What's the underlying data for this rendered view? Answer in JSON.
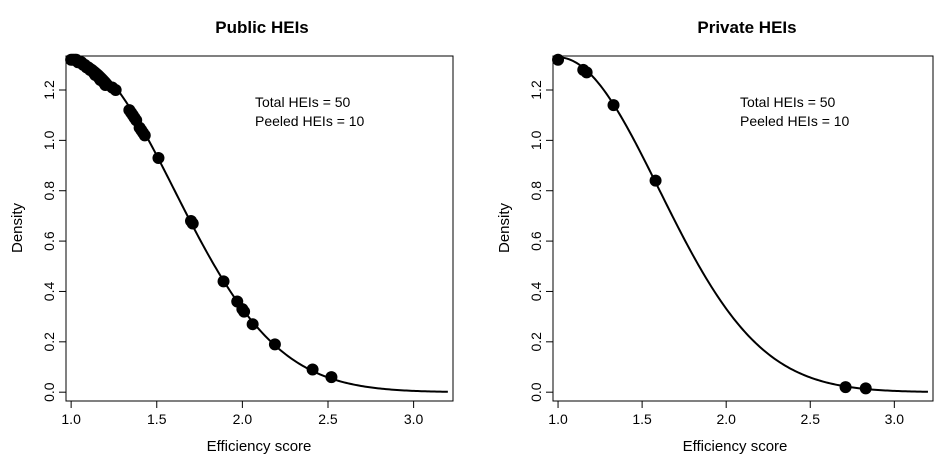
{
  "chart_data": [
    {
      "type": "scatter",
      "title": "Public HEIs",
      "xlabel": "Efficiency score",
      "ylabel": "Density",
      "xlim": [
        0.97,
        3.23
      ],
      "ylim": [
        -0.035,
        1.335
      ],
      "xticks": [
        "1.0",
        "1.5",
        "2.0",
        "2.5",
        "3.0"
      ],
      "yticks": [
        "0.0",
        "0.2",
        "0.4",
        "0.6",
        "0.8",
        "1.0",
        "1.2"
      ],
      "annotations": [
        "Total HEIs = 50",
        "Peeled HEIs = 10"
      ],
      "curve": {
        "type": "half-normal density",
        "sigma": 0.6,
        "x_from": 1.0,
        "x_to": 3.2
      },
      "grid": false,
      "series": [
        {
          "x": [
            1.0,
            1.01,
            1.02,
            1.03,
            1.04,
            1.05,
            1.06,
            1.07,
            1.08,
            1.09,
            1.1,
            1.11,
            1.12,
            1.13,
            1.14,
            1.15,
            1.16,
            1.17,
            1.19,
            1.2,
            1.24,
            1.26,
            1.34,
            1.35,
            1.36,
            1.37,
            1.38,
            1.4,
            1.41,
            1.42,
            1.43,
            1.51,
            1.7,
            1.71,
            1.89,
            1.97,
            2.0,
            2.01,
            2.06,
            2.19,
            2.41,
            2.52
          ],
          "y": [
            1.32,
            1.32,
            1.32,
            1.32,
            1.31,
            1.31,
            1.31,
            1.3,
            1.3,
            1.29,
            1.29,
            1.28,
            1.28,
            1.27,
            1.26,
            1.26,
            1.25,
            1.24,
            1.23,
            1.22,
            1.21,
            1.2,
            1.12,
            1.11,
            1.1,
            1.09,
            1.08,
            1.05,
            1.04,
            1.03,
            1.02,
            0.93,
            0.68,
            0.67,
            0.44,
            0.36,
            0.33,
            0.32,
            0.27,
            0.19,
            0.09,
            0.06
          ]
        }
      ]
    },
    {
      "type": "scatter",
      "title": "Private HEIs",
      "xlabel": "Efficiency score",
      "ylabel": "Density",
      "xlim": [
        0.97,
        3.23
      ],
      "ylim": [
        -0.035,
        1.335
      ],
      "xticks": [
        "1.0",
        "1.5",
        "2.0",
        "2.5",
        "3.0"
      ],
      "yticks": [
        "0.0",
        "0.2",
        "0.4",
        "0.6",
        "0.8",
        "1.0",
        "1.2"
      ],
      "annotations": [
        "Total HEIs = 50",
        "Peeled HEIs = 10"
      ],
      "curve": {
        "type": "half-normal density",
        "sigma": 0.6,
        "x_from": 1.0,
        "x_to": 3.2
      },
      "grid": false,
      "series": [
        {
          "x": [
            1.0,
            1.15,
            1.17,
            1.33,
            1.58,
            2.71,
            2.83
          ],
          "y": [
            1.32,
            1.28,
            1.27,
            1.14,
            0.84,
            0.02,
            0.015
          ]
        }
      ]
    }
  ]
}
